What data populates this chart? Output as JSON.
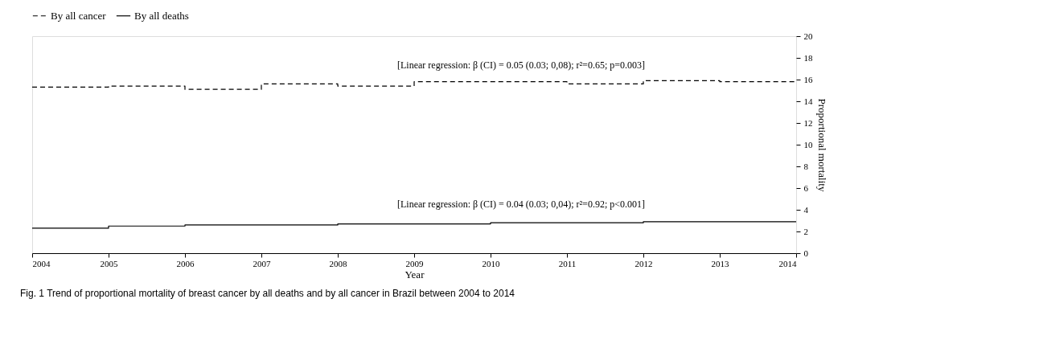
{
  "chart_data": {
    "type": "step",
    "xlabel": "Year",
    "ylabel": "Proportional mortality",
    "x": [
      2004,
      2005,
      2006,
      2007,
      2008,
      2009,
      2010,
      2011,
      2012,
      2013,
      2014
    ],
    "series": [
      {
        "name": "By all cancer",
        "color": "#000000",
        "line_style": "dashed",
        "values": [
          15.3,
          15.4,
          15.1,
          15.6,
          15.4,
          15.8,
          15.8,
          15.6,
          15.9,
          15.8,
          15.8
        ]
      },
      {
        "name": "By all deaths",
        "color": "#000000",
        "line_style": "solid",
        "values": [
          2.3,
          2.5,
          2.6,
          2.6,
          2.7,
          2.7,
          2.8,
          2.8,
          2.9,
          2.9,
          2.9
        ]
      }
    ],
    "xlim": [
      2004,
      2014
    ],
    "xticks": [
      2004,
      2005,
      2006,
      2007,
      2008,
      2009,
      2010,
      2011,
      2012,
      2013,
      2014
    ],
    "ylim": [
      0,
      20
    ],
    "yticks": [
      0,
      2,
      4,
      6,
      8,
      10,
      12,
      14,
      16,
      18,
      20
    ],
    "grid": false,
    "legend": "top",
    "marker": "none",
    "annotations": [
      "[Linear regression: β (CI) = 0.05 (0.03; 0,08); r²=0.65; p=0.003]",
      "[Linear regression: β (CI) = 0.04 (0.03; 0,04); r²=0.92; p<0.001]",
      "Fig. 1 Trend of proportional mortality of breast cancer by all deaths and by all cancer in Brazil between 2004 to 2014"
    ]
  }
}
